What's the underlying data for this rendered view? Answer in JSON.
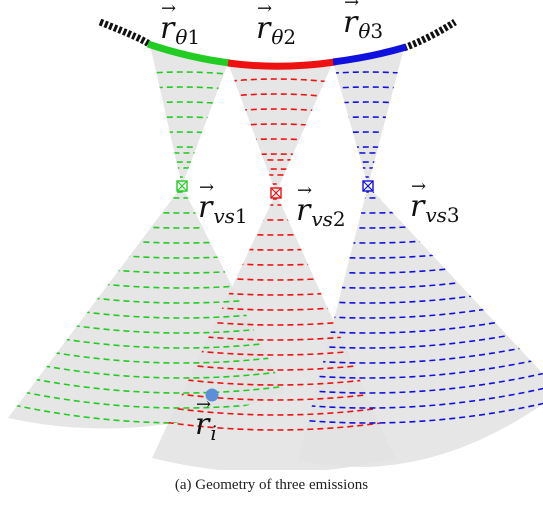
{
  "caption": "(a) Geometry of three emissions",
  "labels": {
    "r_theta_1": {
      "base": "r",
      "sub": "θ",
      "idx": "1"
    },
    "r_theta_2": {
      "base": "r",
      "sub": "θ",
      "idx": "2"
    },
    "r_theta_3": {
      "base": "r",
      "sub": "θ",
      "idx": "3"
    },
    "r_vs_1": {
      "base": "r",
      "sub": "vs",
      "idx": "1"
    },
    "r_vs_2": {
      "base": "r",
      "sub": "vs",
      "idx": "2"
    },
    "r_vs_3": {
      "base": "r",
      "sub": "vs",
      "idx": "3"
    },
    "r_i": {
      "base": "r",
      "sub": "i",
      "idx": ""
    }
  },
  "emissions": [
    {
      "id": 1,
      "color": "#22cc22"
    },
    {
      "id": 2,
      "color": "#ee1111"
    },
    {
      "id": 3,
      "color": "#1111dd"
    }
  ],
  "colors": {
    "array": "#111111",
    "cone_fill": "#e2e2e2",
    "point": "#5b8fd6"
  }
}
